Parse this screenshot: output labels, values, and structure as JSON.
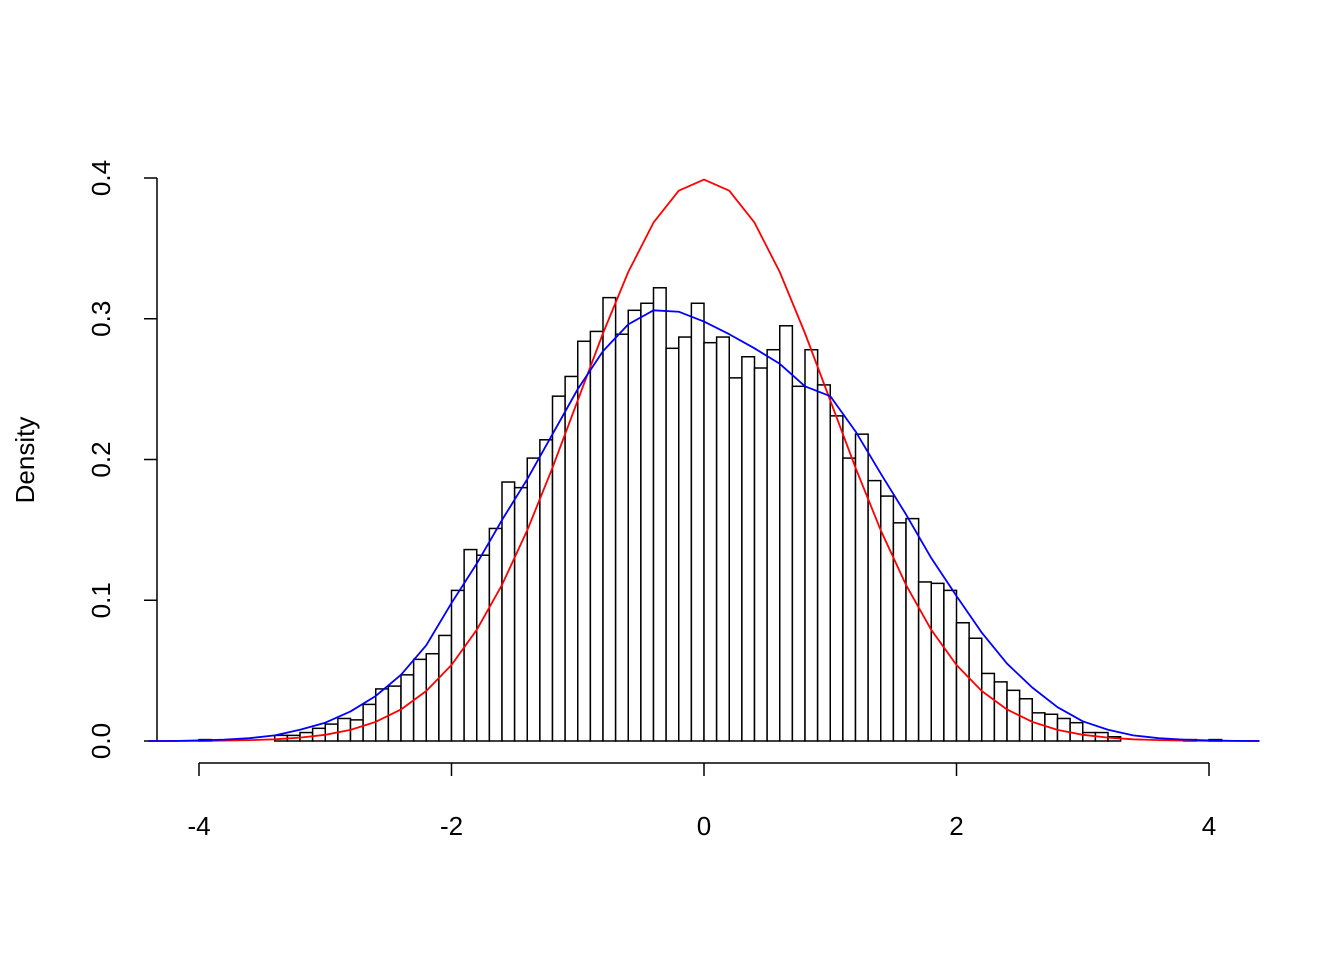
{
  "chart_data": {
    "type": "histogram",
    "ylabel": "Density",
    "bins": [
      -4.0,
      -3.9,
      -3.8,
      -3.7,
      -3.6,
      -3.5,
      -3.4,
      -3.3,
      -3.2,
      -3.1,
      -3.0,
      -2.9,
      -2.8,
      -2.7,
      -2.6,
      -2.5,
      -2.4,
      -2.3,
      -2.2,
      -2.1,
      -2.0,
      -1.9,
      -1.8,
      -1.7,
      -1.6,
      -1.5,
      -1.4,
      -1.3,
      -1.2,
      -1.1,
      -1.0,
      -0.9,
      -0.8,
      -0.7,
      -0.6,
      -0.5,
      -0.4,
      -0.3,
      -0.2,
      -0.1,
      0.0,
      0.1,
      0.2,
      0.3,
      0.4,
      0.5,
      0.6,
      0.7,
      0.8,
      0.9,
      1.0,
      1.1,
      1.2,
      1.3,
      1.4,
      1.5,
      1.6,
      1.7,
      1.8,
      1.9,
      2.0,
      2.1,
      2.2,
      2.3,
      2.4,
      2.5,
      2.6,
      2.7,
      2.8,
      2.9,
      3.0,
      3.1,
      3.2,
      3.3,
      3.4,
      3.5,
      3.6,
      3.7,
      3.8,
      3.9,
      4.0,
      4.1
    ],
    "values": [
      0.001,
      0,
      0,
      0,
      0,
      0,
      0.004,
      0.004,
      0.006,
      0.009,
      0.012,
      0.016,
      0.015,
      0.026,
      0.037,
      0.039,
      0.047,
      0.058,
      0.062,
      0.075,
      0.107,
      0.136,
      0.132,
      0.151,
      0.184,
      0.18,
      0.201,
      0.214,
      0.245,
      0.259,
      0.284,
      0.291,
      0.315,
      0.289,
      0.306,
      0.311,
      0.322,
      0.279,
      0.287,
      0.311,
      0.283,
      0.287,
      0.258,
      0.273,
      0.265,
      0.278,
      0.295,
      0.252,
      0.278,
      0.253,
      0.231,
      0.201,
      0.218,
      0.185,
      0.174,
      0.155,
      0.158,
      0.113,
      0.112,
      0.107,
      0.084,
      0.073,
      0.048,
      0.042,
      0.036,
      0.03,
      0.02,
      0.019,
      0.016,
      0.013,
      0.006,
      0.006,
      0.003,
      0,
      0,
      0,
      0,
      0,
      0.001,
      0,
      0.001
    ],
    "color": "#ffffff",
    "curve_x": [
      -4.4,
      -4.2,
      -4.0,
      -3.8,
      -3.6,
      -3.4,
      -3.2,
      -3.0,
      -2.8,
      -2.6,
      -2.4,
      -2.2,
      -2.0,
      -1.8,
      -1.6,
      -1.4,
      -1.2,
      -1.0,
      -0.8,
      -0.6,
      -0.4,
      -0.2,
      0,
      0.2,
      0.4,
      0.6,
      0.8,
      1.0,
      1.2,
      1.4,
      1.6,
      1.8,
      2.0,
      2.2,
      2.4,
      2.6,
      2.8,
      3.0,
      3.2,
      3.4,
      3.6,
      3.8,
      4.0,
      4.2,
      4.4
    ],
    "series": [
      {
        "color": "#ff0000",
        "values": [
          0,
          0.0001,
          0.0001,
          0.0003,
          0.0006,
          0.0012,
          0.0024,
          0.0044,
          0.0079,
          0.0136,
          0.0224,
          0.0355,
          0.054,
          0.079,
          0.1109,
          0.1497,
          0.1942,
          0.242,
          0.2897,
          0.3332,
          0.3683,
          0.391,
          0.3989,
          0.391,
          0.3683,
          0.3332,
          0.2897,
          0.242,
          0.1942,
          0.1497,
          0.1109,
          0.079,
          0.054,
          0.0355,
          0.0224,
          0.0136,
          0.0079,
          0.0044,
          0.0024,
          0.0012,
          0.0006,
          0.0003,
          0.0001,
          0.0001,
          0
        ]
      },
      {
        "color": "#0000ff",
        "values": [
          0,
          0,
          0.0004,
          0.001,
          0.002,
          0.004,
          0.008,
          0.013,
          0.021,
          0.032,
          0.047,
          0.068,
          0.098,
          0.126,
          0.157,
          0.186,
          0.218,
          0.25,
          0.277,
          0.296,
          0.306,
          0.305,
          0.298,
          0.289,
          0.279,
          0.268,
          0.252,
          0.245,
          0.22,
          0.19,
          0.161,
          0.13,
          0.103,
          0.077,
          0.055,
          0.038,
          0.024,
          0.014,
          0.008,
          0.004,
          0.002,
          0.001,
          0.0004,
          0.0001,
          0
        ]
      }
    ],
    "xlim": [
      -4.4,
      4.4
    ],
    "ylim": [
      0,
      0.4
    ],
    "xticks": [
      -4,
      -2,
      0,
      2,
      4
    ],
    "yticks": [
      {
        "value": 0,
        "label": "0.0"
      },
      0.1,
      0.2,
      0.3,
      0.4
    ]
  }
}
